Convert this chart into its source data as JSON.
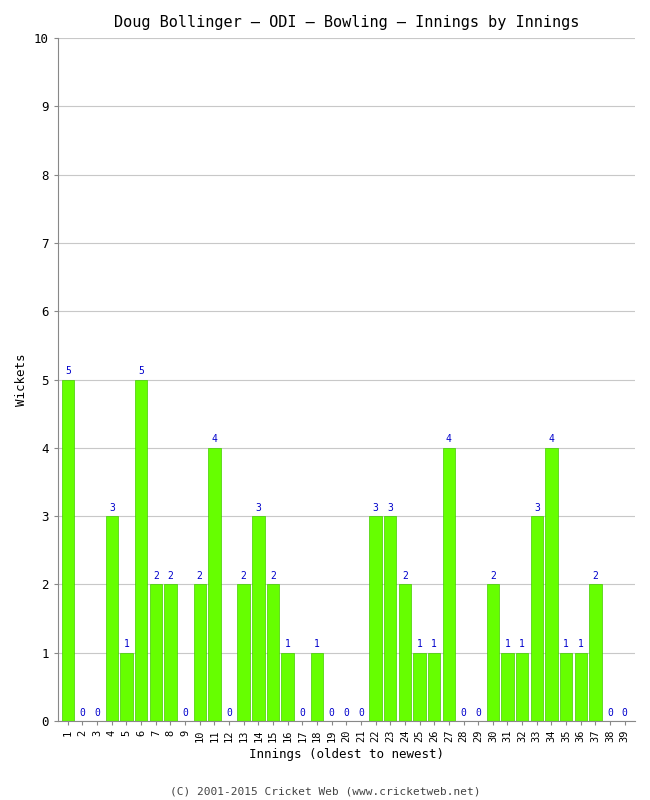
{
  "title": "Doug Bollinger – ODI – Bowling – Innings by Innings",
  "xlabel": "Innings (oldest to newest)",
  "ylabel": "Wickets",
  "bar_color": "#66ff00",
  "bar_edge_color": "#44cc00",
  "label_color": "#0000cc",
  "background_color": "#ffffff",
  "grid_color": "#c8c8c8",
  "ylim": [
    0,
    10
  ],
  "yticks": [
    0,
    1,
    2,
    3,
    4,
    5,
    6,
    7,
    8,
    9,
    10
  ],
  "innings": [
    1,
    2,
    3,
    4,
    5,
    6,
    7,
    8,
    9,
    10,
    11,
    12,
    13,
    14,
    15,
    16,
    17,
    18,
    19,
    20,
    21,
    22,
    23,
    24,
    25,
    26,
    27,
    28,
    29,
    30,
    31,
    32,
    33,
    34,
    35,
    36,
    37,
    38,
    39
  ],
  "wickets": [
    5,
    0,
    0,
    3,
    1,
    5,
    2,
    2,
    0,
    2,
    4,
    0,
    2,
    3,
    2,
    1,
    0,
    1,
    0,
    0,
    0,
    3,
    3,
    2,
    1,
    1,
    4,
    0,
    0,
    2,
    1,
    1,
    3,
    4,
    1,
    1,
    2,
    0,
    0
  ],
  "footnote": "(C) 2001-2015 Cricket Web (www.cricketweb.net)"
}
